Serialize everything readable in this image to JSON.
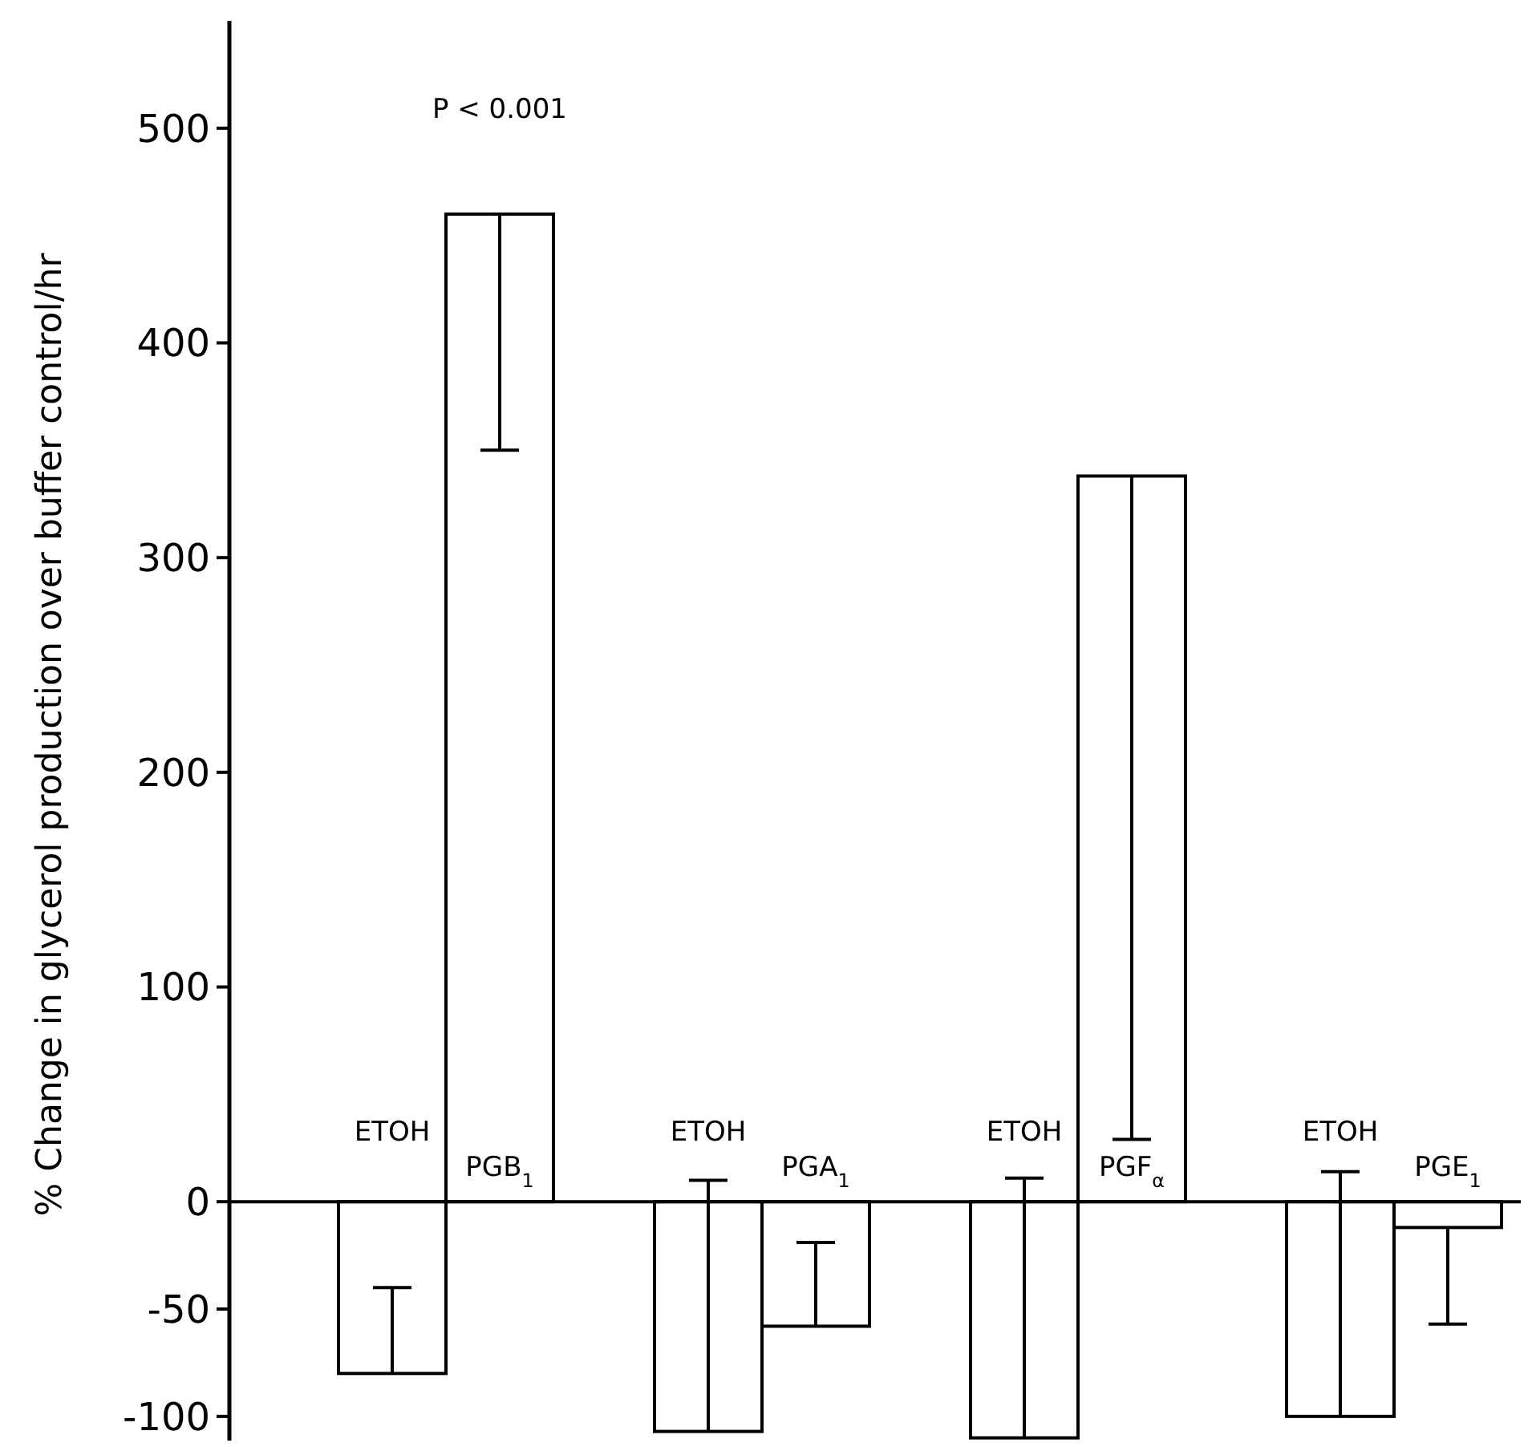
{
  "chart_data": {
    "type": "bar",
    "ylabel": "% Change in glycerol production over buffer control/hr",
    "categories": [
      "ETOH",
      "PGB$_{1}$",
      "ETOH",
      "PGA$_{1}$",
      "ETOH",
      "PGF$_{α}$",
      "ETOH",
      "PGE$_{1}$"
    ],
    "values": [
      -80,
      460,
      -107,
      -58,
      -110,
      338,
      -100,
      -12
    ],
    "errors": [
      [
        -80,
        -40
      ],
      [
        350,
        460
      ],
      [
        -107,
        10
      ],
      [
        -58,
        -19
      ],
      [
        -110,
        11
      ],
      [
        29,
        338
      ],
      [
        -100,
        14
      ],
      [
        -57,
        -12
      ]
    ],
    "color": "#000000",
    "ylim": [
      -115,
      550
    ],
    "yticks": [
      -100,
      -50,
      0,
      100,
      200,
      300,
      400,
      500
    ],
    "annotations": [
      "P < 0.001"
    ]
  }
}
